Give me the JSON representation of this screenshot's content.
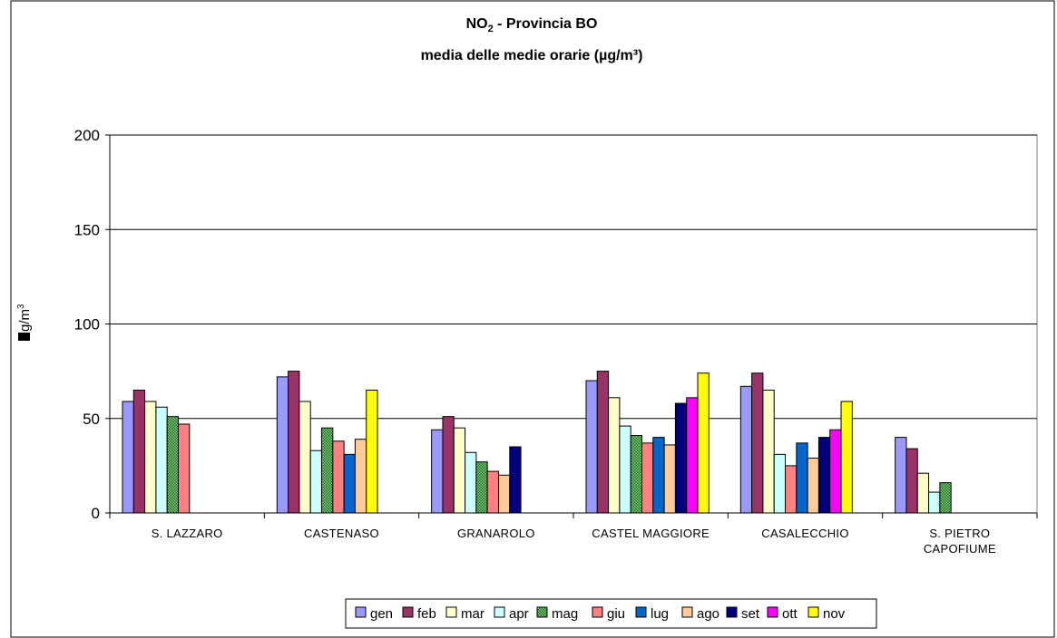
{
  "chart_data": {
    "type": "bar",
    "title_line1_main": "NO",
    "title_line1_sub": "2",
    "title_line1_rest": " - Provincia BO",
    "title_line2": "media delle medie orarie (µg/m³)",
    "ylabel_main": "g/m",
    "ylabel_sup": "3",
    "ylim": [
      0,
      200
    ],
    "yticks": [
      "0",
      "50",
      "100",
      "150",
      "200"
    ],
    "ytick_values": [
      0,
      50,
      100,
      150,
      200
    ],
    "categories": [
      [
        "S. LAZZARO"
      ],
      [
        "CASTENASO"
      ],
      [
        "GRANAROLO"
      ],
      [
        "CASTEL MAGGIORE"
      ],
      [
        "CASALECCHIO"
      ],
      [
        "S. PIETRO",
        "CAPOFIUME"
      ]
    ],
    "legend_position": "bottom",
    "grid": true,
    "series": [
      {
        "name": "gen",
        "color": "#9999FF",
        "values": [
          59,
          72,
          44,
          70,
          67,
          40
        ]
      },
      {
        "name": "feb",
        "color": "#993366",
        "values": [
          65,
          75,
          51,
          75,
          74,
          34
        ]
      },
      {
        "name": "mar",
        "color": "#FFFFCC",
        "values": [
          59,
          59,
          45,
          61,
          65,
          21
        ]
      },
      {
        "name": "apr",
        "color": "#CCFFFF",
        "values": [
          56,
          33,
          32,
          46,
          31,
          11
        ]
      },
      {
        "name": "mag",
        "color": "#339933",
        "pattern": true,
        "values": [
          51,
          45,
          27,
          41,
          null,
          16
        ]
      },
      {
        "name": "giu",
        "color": "#FF8080",
        "values": [
          47,
          38,
          22,
          37,
          25,
          null
        ]
      },
      {
        "name": "lug",
        "color": "#0066CC",
        "values": [
          null,
          31,
          null,
          40,
          37,
          null
        ]
      },
      {
        "name": "ago",
        "color": "#FFCC99",
        "values": [
          null,
          39,
          20,
          36,
          29,
          null
        ]
      },
      {
        "name": "set",
        "color": "#000080",
        "values": [
          null,
          null,
          35,
          58,
          40,
          null
        ]
      },
      {
        "name": "ott",
        "color": "#FF00FF",
        "values": [
          null,
          null,
          null,
          61,
          44,
          null
        ]
      },
      {
        "name": "nov",
        "color": "#FFFF00",
        "values": [
          null,
          65,
          null,
          74,
          59,
          null
        ]
      }
    ]
  }
}
